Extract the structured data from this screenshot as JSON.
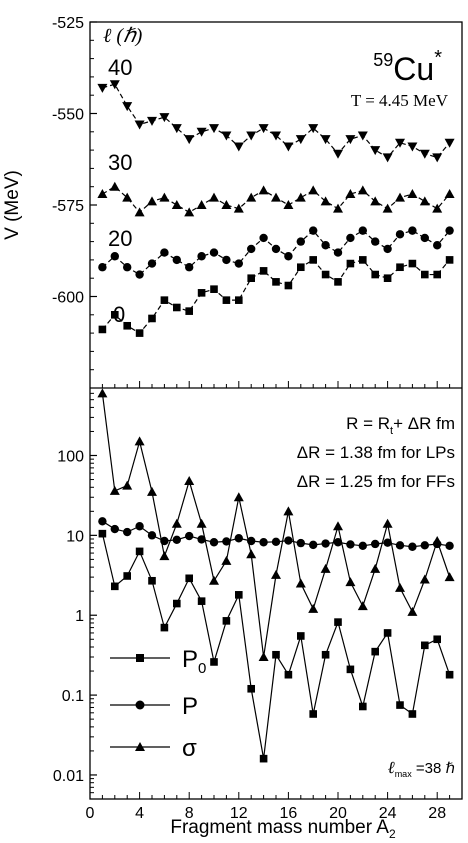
{
  "chart_data": [
    {
      "type": "line",
      "ylabel": "V (MeV)",
      "ylim": [
        -625,
        -525
      ],
      "yticks": [
        -525,
        -550,
        -575,
        -600
      ],
      "xlim": [
        0,
        30
      ],
      "ell_axis_label": "ℓ (ℏ)",
      "nucleus": {
        "mass": "59",
        "symbol": "Cu",
        "star": "*"
      },
      "temperature": "T = 4.45 MeV",
      "curve_labels": [
        "40",
        "30",
        "20",
        "0"
      ],
      "series": [
        {
          "name": "40",
          "marker": "triangle-down",
          "x": [
            1,
            2,
            3,
            4,
            5,
            6,
            7,
            8,
            9,
            10,
            11,
            12,
            13,
            14,
            15,
            16,
            17,
            18,
            19,
            20,
            21,
            22,
            23,
            24,
            25,
            26,
            27,
            28,
            29
          ],
          "values": [
            -543,
            -542,
            -548,
            -553,
            -552,
            -551,
            -554,
            -557,
            -555,
            -554,
            -556,
            -559,
            -556,
            -554,
            -556,
            -559,
            -557,
            -554,
            -557,
            -561,
            -557,
            -556,
            -560,
            -562,
            -558,
            -559,
            -561,
            -562,
            -558
          ]
        },
        {
          "name": "30",
          "marker": "triangle-up",
          "x": [
            1,
            2,
            3,
            4,
            5,
            6,
            7,
            8,
            9,
            10,
            11,
            12,
            13,
            14,
            15,
            16,
            17,
            18,
            19,
            20,
            21,
            22,
            23,
            24,
            25,
            26,
            27,
            28,
            29
          ],
          "values": [
            -572,
            -570,
            -573,
            -577,
            -574,
            -573,
            -575,
            -577,
            -575,
            -573,
            -575,
            -576,
            -573,
            -571,
            -573,
            -575,
            -573,
            -571,
            -574,
            -576,
            -572,
            -571,
            -574,
            -576,
            -573,
            -572,
            -574,
            -576,
            -572
          ]
        },
        {
          "name": "20",
          "marker": "circle",
          "x": [
            1,
            2,
            3,
            4,
            5,
            6,
            7,
            8,
            9,
            10,
            11,
            12,
            13,
            14,
            15,
            16,
            17,
            18,
            19,
            20,
            21,
            22,
            23,
            24,
            25,
            26,
            27,
            28,
            29
          ],
          "values": [
            -592,
            -589,
            -592,
            -594,
            -591,
            -588,
            -590,
            -592,
            -589,
            -588,
            -590,
            -591,
            -587,
            -584,
            -587,
            -589,
            -585,
            -582,
            -586,
            -588,
            -584,
            -582,
            -585,
            -587,
            -583,
            -582,
            -584,
            -586,
            -582
          ]
        },
        {
          "name": "0",
          "marker": "square",
          "x": [
            1,
            2,
            3,
            4,
            5,
            6,
            7,
            8,
            9,
            10,
            11,
            12,
            13,
            14,
            15,
            16,
            17,
            18,
            19,
            20,
            21,
            22,
            23,
            24,
            25,
            26,
            27,
            28,
            29
          ],
          "values": [
            -609,
            -605,
            -608,
            -610,
            -606,
            -601,
            -603,
            -604,
            -599,
            -598,
            -601,
            -601,
            -595,
            -593,
            -596,
            -597,
            -592,
            -590,
            -594,
            -596,
            -591,
            -590,
            -594,
            -595,
            -592,
            -591,
            -594,
            -594,
            -590
          ]
        }
      ]
    },
    {
      "type": "line",
      "scale": "log",
      "xlabel": "Fragment mass number A",
      "xlabel_sub": "2",
      "xlim": [
        0,
        30
      ],
      "xticks": [
        0,
        4,
        8,
        12,
        16,
        20,
        24,
        28
      ],
      "ylim": [
        0.005,
        700
      ],
      "yticks": [
        0.01,
        0.1,
        1,
        10,
        100
      ],
      "ytick_labels": [
        "0.01",
        "0.1",
        "1",
        "10",
        "100"
      ],
      "annotation_lines": [
        "R = R",
        "+ ΔR fm",
        "ΔR = 1.38 fm for LPs",
        "ΔR = 1.25 fm for FFs"
      ],
      "annotation_sub": "t",
      "lmax_label": {
        "symbol": "ℓ",
        "sub": "max",
        "text": " =38 ℏ"
      },
      "legend": {
        "position": "bottom-left",
        "entries": [
          {
            "name": "P",
            "sub": "0",
            "marker": "square"
          },
          {
            "name": "P",
            "sub": "",
            "marker": "circle"
          },
          {
            "name": "σ",
            "sub": "",
            "marker": "triangle-up"
          }
        ]
      },
      "series": [
        {
          "name": "P0",
          "marker": "square",
          "x": [
            1,
            2,
            3,
            4,
            5,
            6,
            7,
            8,
            9,
            10,
            11,
            12,
            13,
            14,
            15,
            16,
            17,
            18,
            19,
            20,
            21,
            22,
            23,
            24,
            25,
            26,
            27,
            28,
            29
          ],
          "values": [
            10.5,
            2.3,
            3.1,
            6.3,
            2.7,
            0.7,
            1.4,
            2.9,
            1.5,
            0.26,
            0.85,
            1.8,
            0.12,
            0.016,
            0.32,
            0.18,
            0.55,
            0.058,
            0.32,
            0.82,
            0.21,
            0.072,
            0.35,
            0.6,
            0.075,
            0.058,
            0.42,
            0.5,
            0.18
          ]
        },
        {
          "name": "P",
          "marker": "circle",
          "x": [
            1,
            2,
            3,
            4,
            5,
            6,
            7,
            8,
            9,
            10,
            11,
            12,
            13,
            14,
            15,
            16,
            17,
            18,
            19,
            20,
            21,
            22,
            23,
            24,
            25,
            26,
            27,
            28,
            29
          ],
          "values": [
            15,
            12,
            11,
            13,
            10,
            8.5,
            8.8,
            9.8,
            8.9,
            8.2,
            8.4,
            9.2,
            8.5,
            8.2,
            8.3,
            8.6,
            8.0,
            7.6,
            7.9,
            8.2,
            7.7,
            7.4,
            7.8,
            8.1,
            7.5,
            7.2,
            7.5,
            7.8,
            7.4
          ]
        },
        {
          "name": "σ",
          "marker": "triangle-up",
          "x": [
            1,
            2,
            3,
            4,
            5,
            6,
            7,
            8,
            9,
            10,
            11,
            12,
            13,
            14,
            15,
            16,
            17,
            18,
            19,
            20,
            21,
            22,
            23,
            24,
            25,
            26,
            27,
            28,
            29
          ],
          "values": [
            600,
            36,
            42,
            150,
            35,
            5.5,
            14,
            48,
            14,
            2.7,
            4.8,
            30,
            5.8,
            0.3,
            3.2,
            20,
            2.5,
            1.2,
            3.8,
            13,
            2.6,
            1.3,
            3.8,
            14,
            2.2,
            1.1,
            2.8,
            8.5,
            3.0
          ]
        }
      ]
    }
  ]
}
